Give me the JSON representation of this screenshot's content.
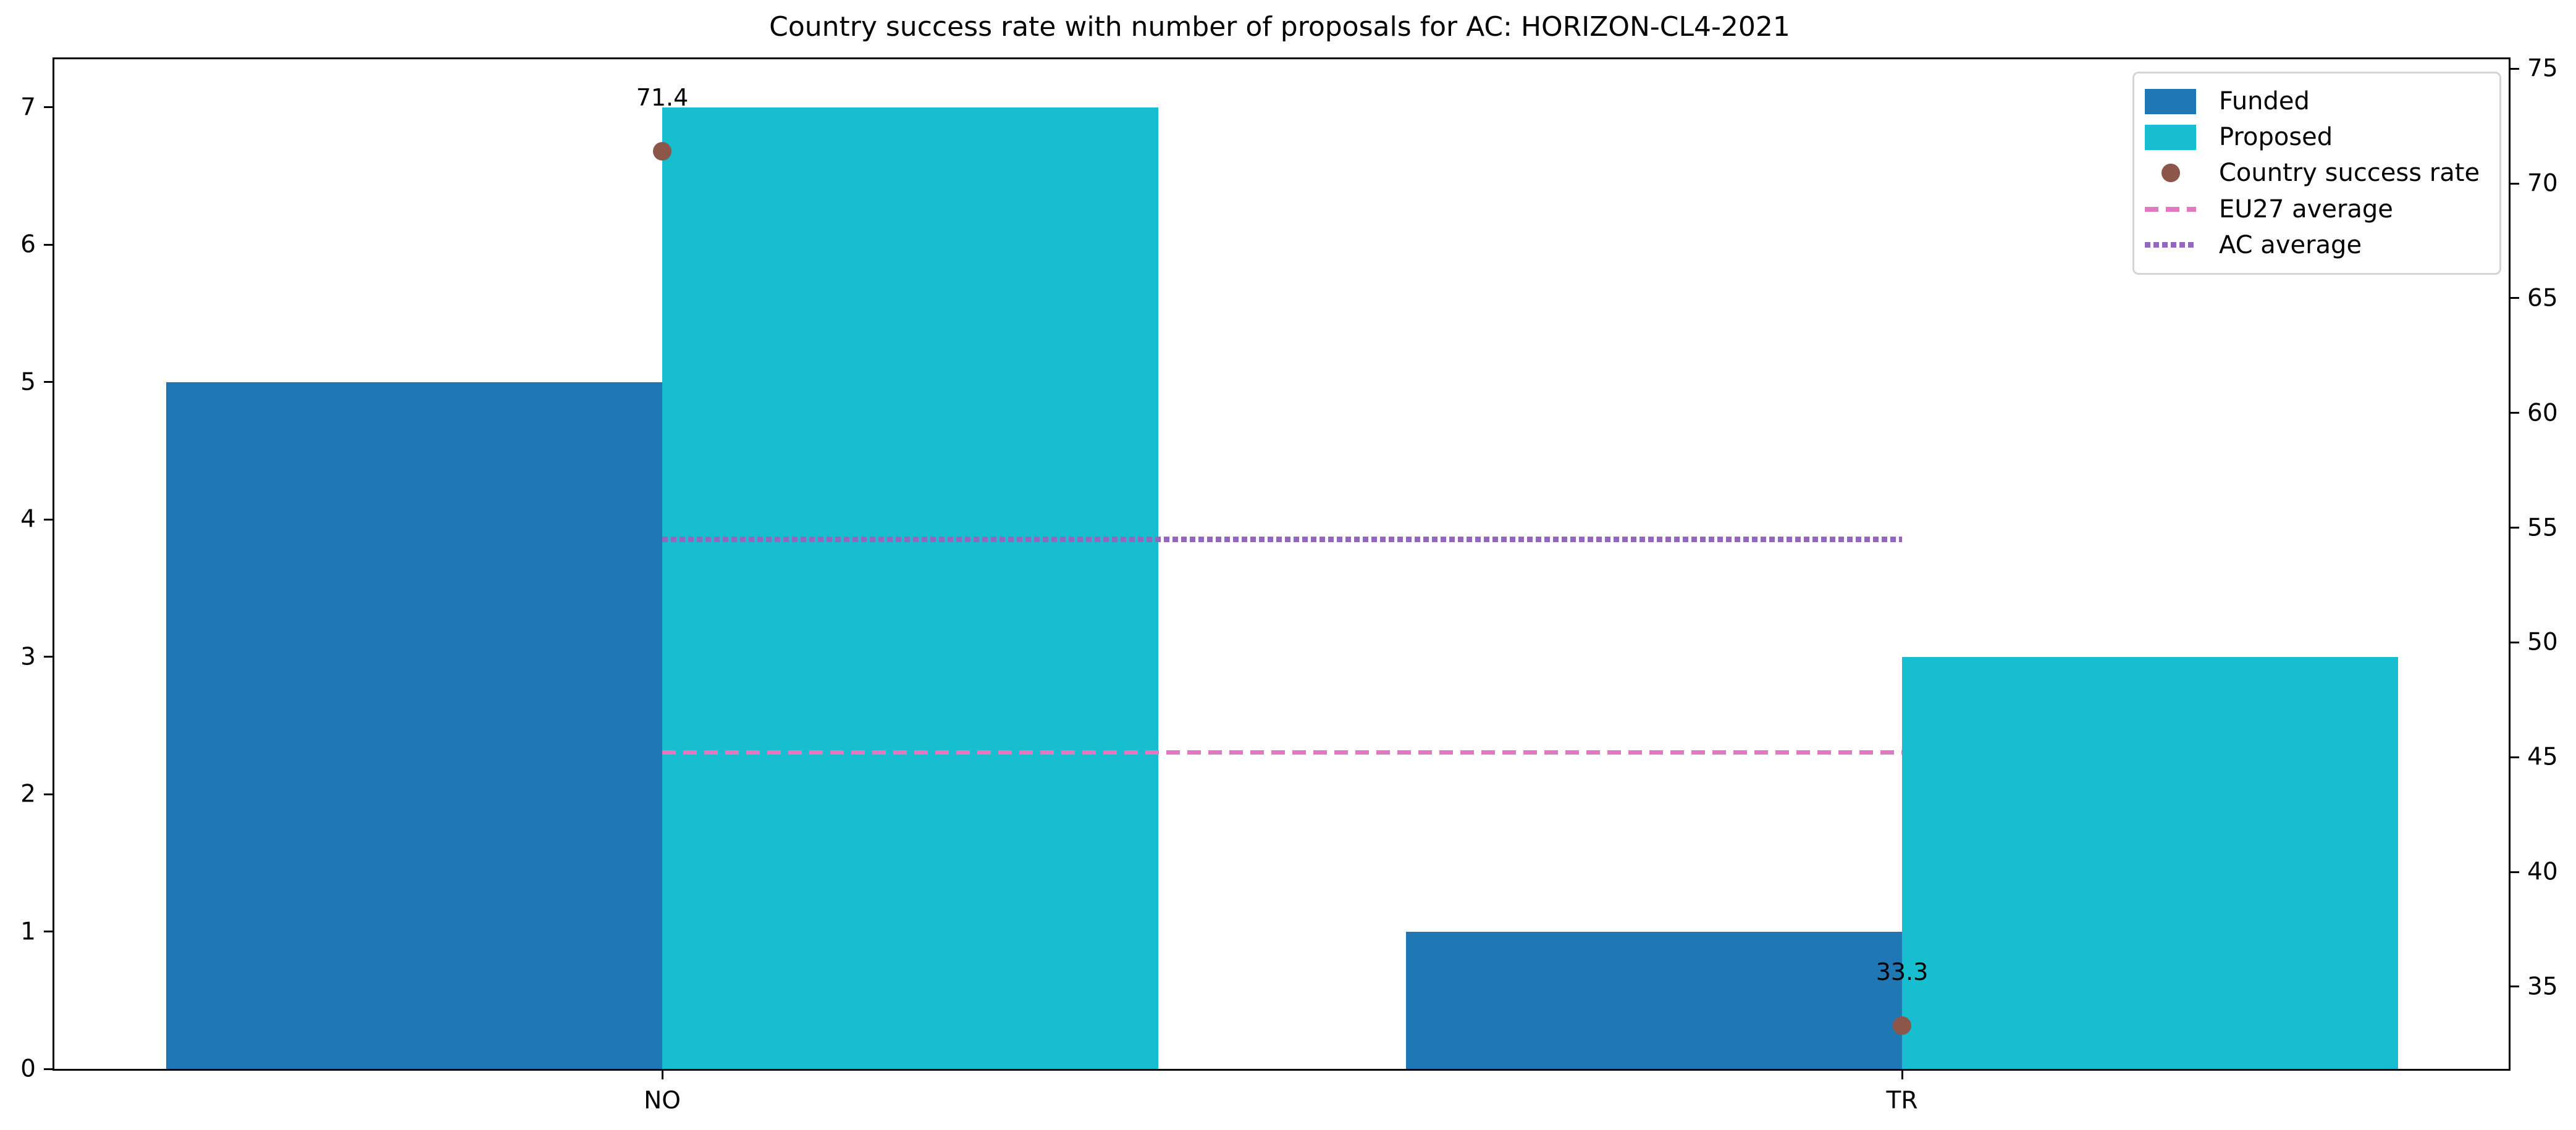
{
  "title": "Country success rate with number of proposals for AC: HORIZON-CL4-2021",
  "chart_data": {
    "type": "bar",
    "categories": [
      "NO",
      "TR"
    ],
    "series": [
      {
        "name": "Funded",
        "values": [
          5,
          1
        ],
        "color": "#1f77b4"
      },
      {
        "name": "Proposed",
        "values": [
          7,
          3
        ],
        "color": "#17becf"
      }
    ],
    "scatter": {
      "name": "Country success rate",
      "values": [
        71.4,
        33.3
      ],
      "color": "#8c564b"
    },
    "point_labels": [
      "71.4",
      "33.3"
    ],
    "hlines": [
      {
        "name": "EU27 average",
        "value": 45.2,
        "style": "dashed",
        "color": "#e377c2"
      },
      {
        "name": "AC average",
        "value": 54.5,
        "style": "dotted",
        "color": "#9467bd"
      }
    ],
    "left_axis": {
      "ticks": [
        0,
        1,
        2,
        3,
        4,
        5,
        6,
        7
      ],
      "lim": [
        0,
        7.35
      ]
    },
    "right_axis": {
      "ticks": [
        35,
        40,
        45,
        50,
        55,
        60,
        65,
        70,
        75
      ],
      "lim": [
        31.4,
        75.4
      ]
    },
    "x_tick_labels": [
      "NO",
      "TR"
    ],
    "grid": false,
    "legend_position": "upper right"
  },
  "legend": {
    "items": [
      {
        "label": "Funded",
        "swatch": "rect",
        "color": "#1f77b4"
      },
      {
        "label": "Proposed",
        "swatch": "rect",
        "color": "#17becf"
      },
      {
        "label": "Country success rate",
        "swatch": "dot",
        "color": "#8c564b"
      },
      {
        "label": "EU27 average",
        "swatch": "dashed-line",
        "color": "#e377c2"
      },
      {
        "label": "AC average",
        "swatch": "dotted-line",
        "color": "#9467bd"
      }
    ]
  }
}
